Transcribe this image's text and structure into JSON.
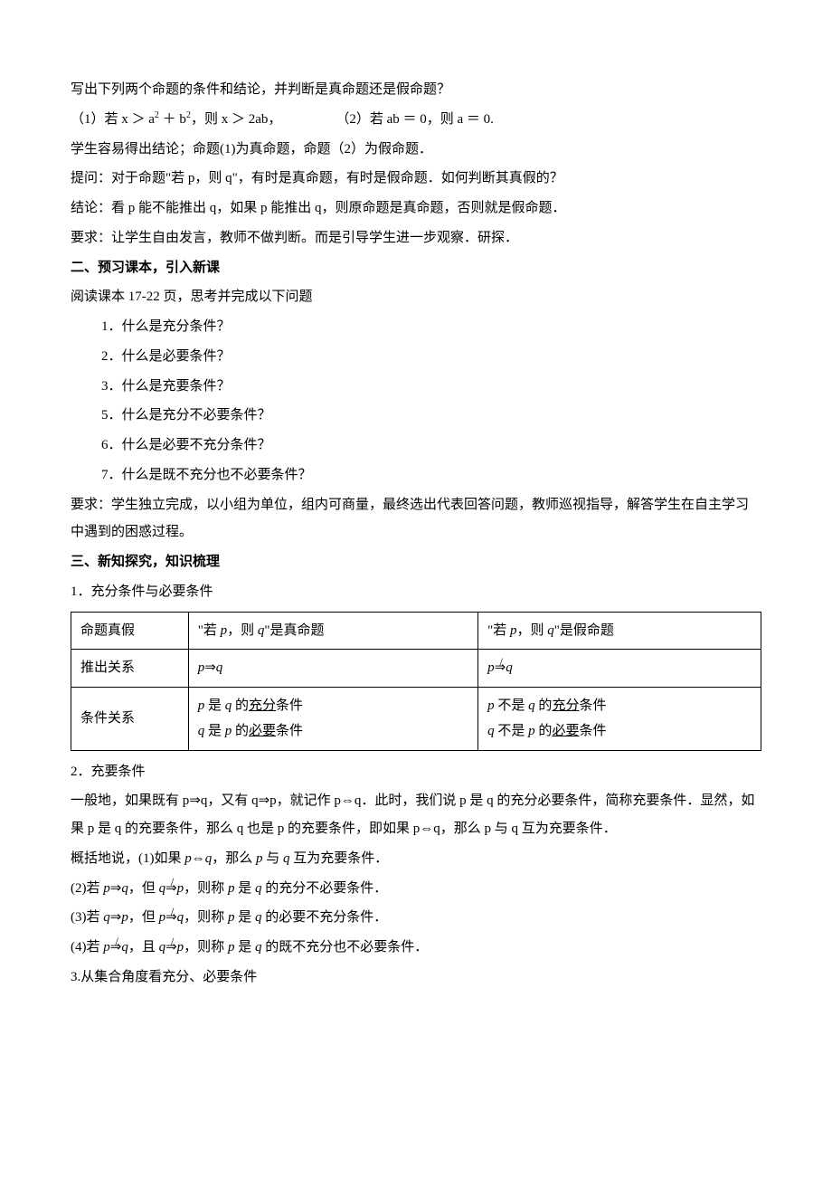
{
  "p1": "写出下列两个命题的条件和结论，并判断是真命题还是假命题？",
  "p2a": "（1）若 x ＞ a",
  "p2b": " ＋ b",
  "p2c": "，则 x ＞ 2ab，",
  "p2gap": " ",
  "p2d": "（2）若 ab ＝ 0，则 a ＝ 0.",
  "sup2": "2",
  "p3": "学生容易得出结论；命题(1)为真命题，命题（2）为假命题．",
  "p4": "提问：对于命题\"若 p，则 q\"，有时是真命题，有时是假命题．如何判断其真假的？",
  "p5": "结论：看 p 能不能推出 q，如果 p 能推出 q，则原命题是真命题，否则就是假命题．",
  "p6": "要求：让学生自由发言，教师不做判断。而是引导学生进一步观察．研探．",
  "h2": "二、预习课本，引入新课",
  "p7": "阅读课本 17-22 页，思考并完成以下问题",
  "q1": "1．什么是充分条件？",
  "q2": "2．什么是必要条件？",
  "q3": "3．什么是充要条件？",
  "q5": "5．什么是充分不必要条件？",
  "q6": "6．什么是必要不充分条件？",
  "q7": "7．什么是既不充分也不必要条件？",
  "p8": "要求：学生独立完成，以小组为单位，组内可商量，最终选出代表回答问题，教师巡视指导，解答学生在自主学习中遇到的困惑过程。",
  "h3": "三、新知探究，知识梳理",
  "s1": "1．充分条件与必要条件",
  "t_r1c1": "命题真假",
  "t_r1c2a": "\"若 ",
  "t_r1c2b": "，则 ",
  "t_r1c2c": "\"是真命题",
  "t_r1c3a": "\"若 ",
  "t_r1c3b": "，则 ",
  "t_r1c3c": "\"是假命题",
  "t_r2c1": "推出关系",
  "t_r3c1": "条件关系",
  "p_label": "p",
  "q_label": "q",
  "imp": "⇒",
  "iff": "⇔",
  "t_r3c2a_1": " 是 ",
  "t_r3c2a_2": " 的",
  "t_r3c2a_3": "充分",
  "t_r3c2a_4": "条件",
  "t_r3c2b_1": " 是 ",
  "t_r3c2b_2": " 的",
  "t_r3c2b_3": "必要",
  "t_r3c2b_4": "条件",
  "t_r3c3a_1": " 不是 ",
  "t_r3c3b_1": " 不是 ",
  "s2": "2．充要条件",
  "p9": "一般地，如果既有 p⇒q，又有 q⇒p，就记作 p⇔q．此时，我们说 p 是 q 的充分必要条件，简称充要条件．显然，如果 p 是 q 的充要条件，那么 q 也是 p 的充要条件，即如果 p⇔q，那么 p 与 q 互为充要条件．",
  "p10a": "概括地说，(1)如果 ",
  "p10b": "，那么 ",
  "p10c": " 与 ",
  "p10d": " 互为充要条件．",
  "p11a": "(2)若 ",
  "p11b": "，但 ",
  "p11c": "，则称 ",
  "p11d": " 是 ",
  "p11e": " 的充分不必要条件．",
  "p12a": "(3)若 ",
  "p12b": "，但 ",
  "p12c": "，则称 ",
  "p12d": " 是 ",
  "p12e": " 的必要不充分条件．",
  "p13a": "(4)若 ",
  "p13b": "，且 ",
  "p13c": "，则称 ",
  "p13d": " 是 ",
  "p13e": " 的既不充分也不必要条件．",
  "s3": "3.从集合角度看充分、必要条件"
}
